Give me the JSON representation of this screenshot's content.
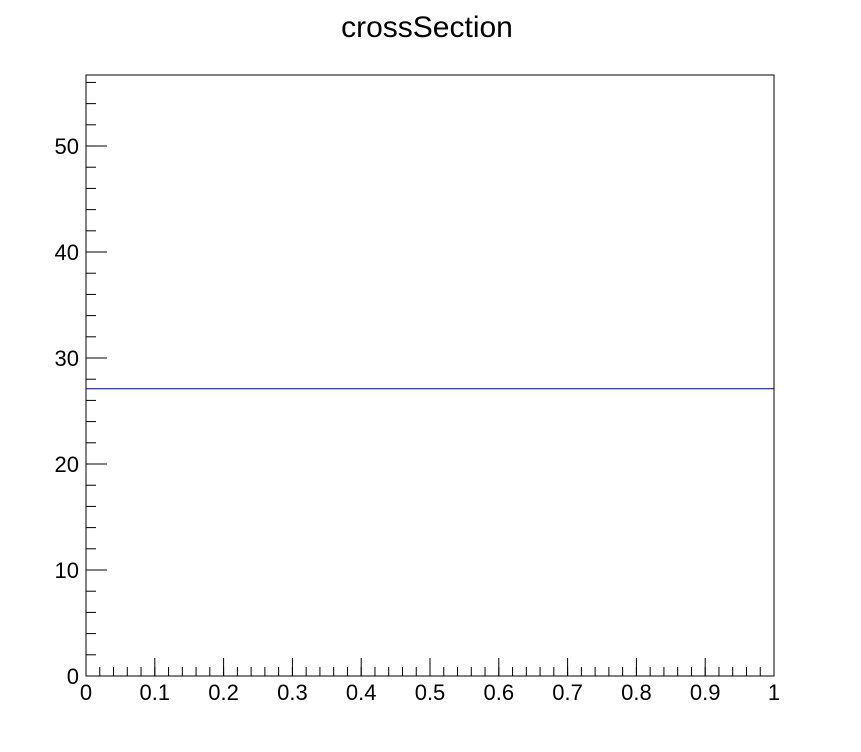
{
  "chart_data": {
    "type": "line",
    "title": "crossSection",
    "xlabel": "",
    "ylabel": "",
    "xlim": [
      0,
      1
    ],
    "ylim": [
      0,
      56.7
    ],
    "x_ticks": [
      0,
      0.1,
      0.2,
      0.3,
      0.4,
      0.5,
      0.6,
      0.7,
      0.8,
      0.9,
      1
    ],
    "x_tick_labels": [
      "0",
      "0.1",
      "0.2",
      "0.3",
      "0.4",
      "0.5",
      "0.6",
      "0.7",
      "0.8",
      "0.9",
      "1"
    ],
    "y_ticks": [
      0,
      10,
      20,
      30,
      40,
      50
    ],
    "y_tick_labels": [
      "0",
      "10",
      "20",
      "30",
      "40",
      "50"
    ],
    "x_minor_step": 0.02,
    "y_minor_step": 2,
    "grid": false,
    "legend": "none",
    "series": [
      {
        "x": [
          0,
          1
        ],
        "y": [
          27.1,
          27.1
        ],
        "color": "#000080"
      }
    ]
  }
}
